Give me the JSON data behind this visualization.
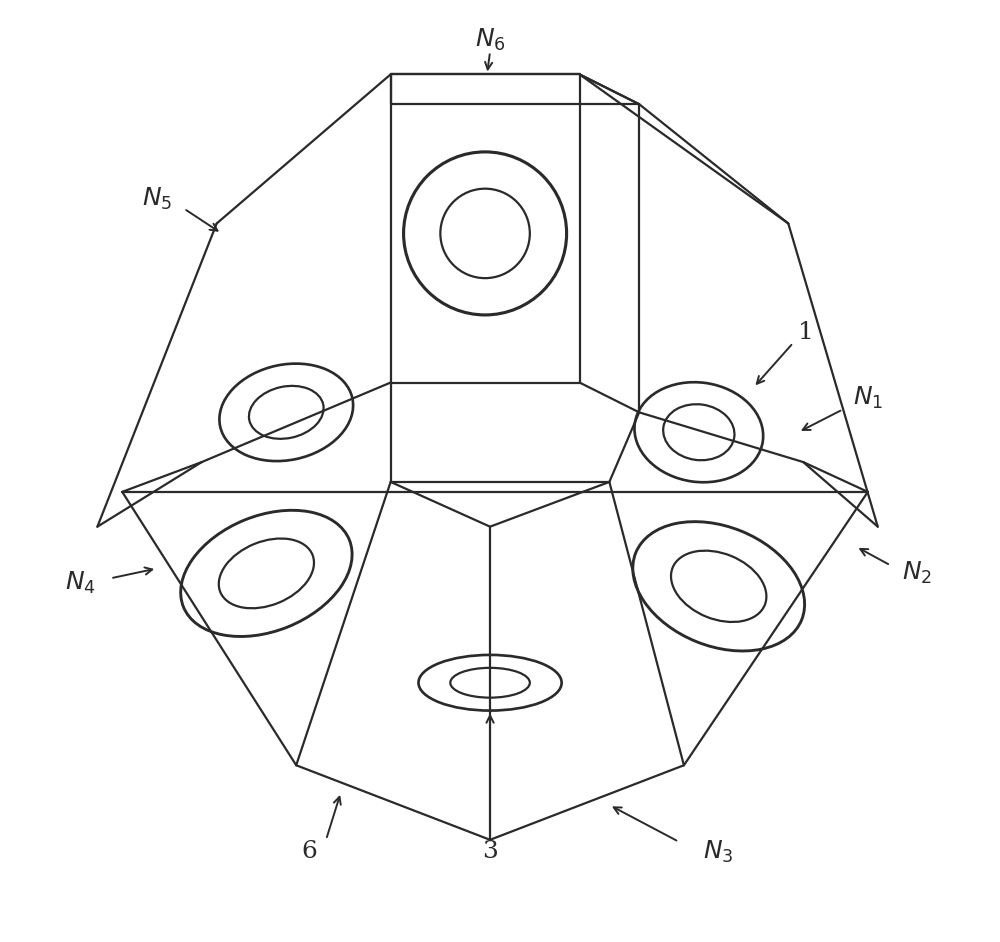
{
  "background_color": "#ffffff",
  "line_color": "#2a2a2a",
  "line_width": 1.6,
  "fig_width": 10.0,
  "fig_height": 9.42,
  "dpi": 100
}
